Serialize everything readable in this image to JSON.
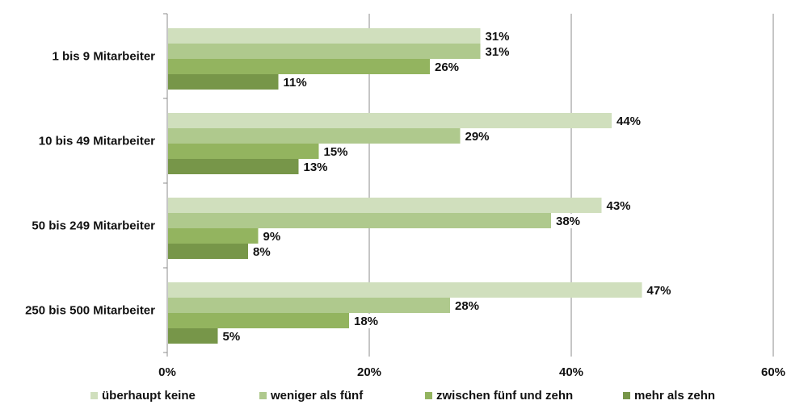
{
  "chart_data": {
    "type": "bar",
    "orientation": "horizontal",
    "categories": [
      "1 bis 9 Mitarbeiter",
      "10 bis 49 Mitarbeiter",
      "50 bis 249 Mitarbeiter",
      "250 bis 500 Mitarbeiter"
    ],
    "series": [
      {
        "name": "überhaupt keine",
        "values": [
          31,
          44,
          43,
          47
        ],
        "labels": [
          "31%",
          "44%",
          "43%",
          "47%"
        ],
        "color": "#d0dfbd"
      },
      {
        "name": "weniger als fünf",
        "values": [
          31,
          29,
          38,
          28
        ],
        "labels": [
          "31%",
          "29%",
          "38%",
          "28%"
        ],
        "color": "#afc98d"
      },
      {
        "name": "zwischen fünf und zehn",
        "values": [
          26,
          15,
          9,
          18
        ],
        "labels": [
          "26%",
          "15%",
          "9%",
          "18%"
        ],
        "color": "#93b45f"
      },
      {
        "name": "mehr als zehn",
        "values": [
          11,
          13,
          8,
          5
        ],
        "labels": [
          "11%",
          "13%",
          "8%",
          "5%"
        ],
        "color": "#779649"
      }
    ],
    "xlim": [
      0,
      60
    ],
    "xticks": [
      0,
      20,
      40,
      60
    ],
    "xtick_labels": [
      "0%",
      "20%",
      "40%",
      "60%"
    ],
    "grid": "vertical",
    "legend_position": "bottom",
    "title": "",
    "xlabel": "",
    "ylabel": ""
  }
}
